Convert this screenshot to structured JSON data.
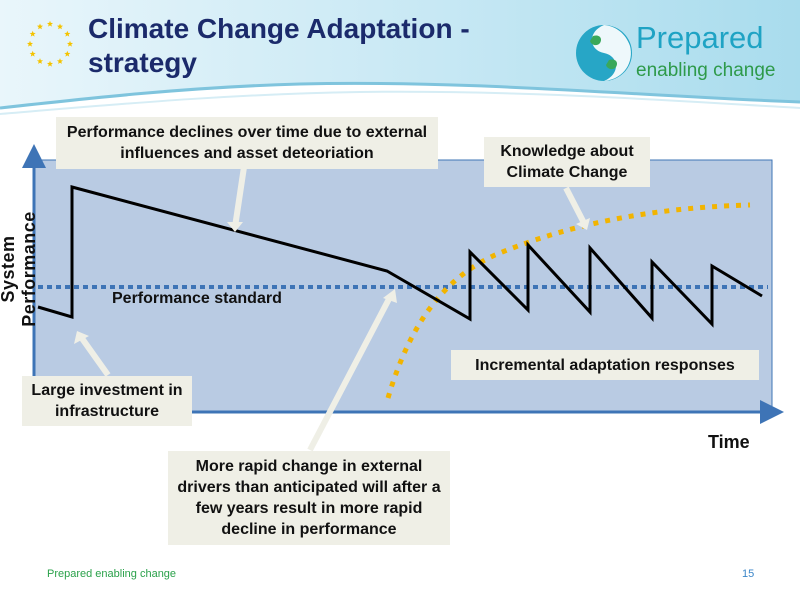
{
  "header": {
    "title": "Climate Change Adaptation - strategy",
    "brand": {
      "name": "Prepared",
      "tagline": "enabling change"
    }
  },
  "diagram": {
    "y_axis_label": "System Performance",
    "x_axis_label": "Time",
    "standard_label": "Performance standard",
    "callouts": {
      "decline": "Performance declines over time due to external influences and asset deteoriation",
      "knowledge": "Knowledge about Climate Change",
      "investment": "Large investment in infrastructure",
      "rapid_change": "More rapid change in external drivers than anticipated will after a few years result in more rapid decline in performance",
      "incremental": "Incremental adaptation responses"
    }
  },
  "footer": {
    "left": "Prepared enabling change",
    "page_number": "15"
  },
  "colors": {
    "title": "#1b2a6b",
    "plot_background": "#b9cbe3",
    "axis": "#3e74b6",
    "standard_line": "#3e74b6",
    "knowledge_curve": "#f2b400",
    "callout_background": "#efefe6"
  }
}
